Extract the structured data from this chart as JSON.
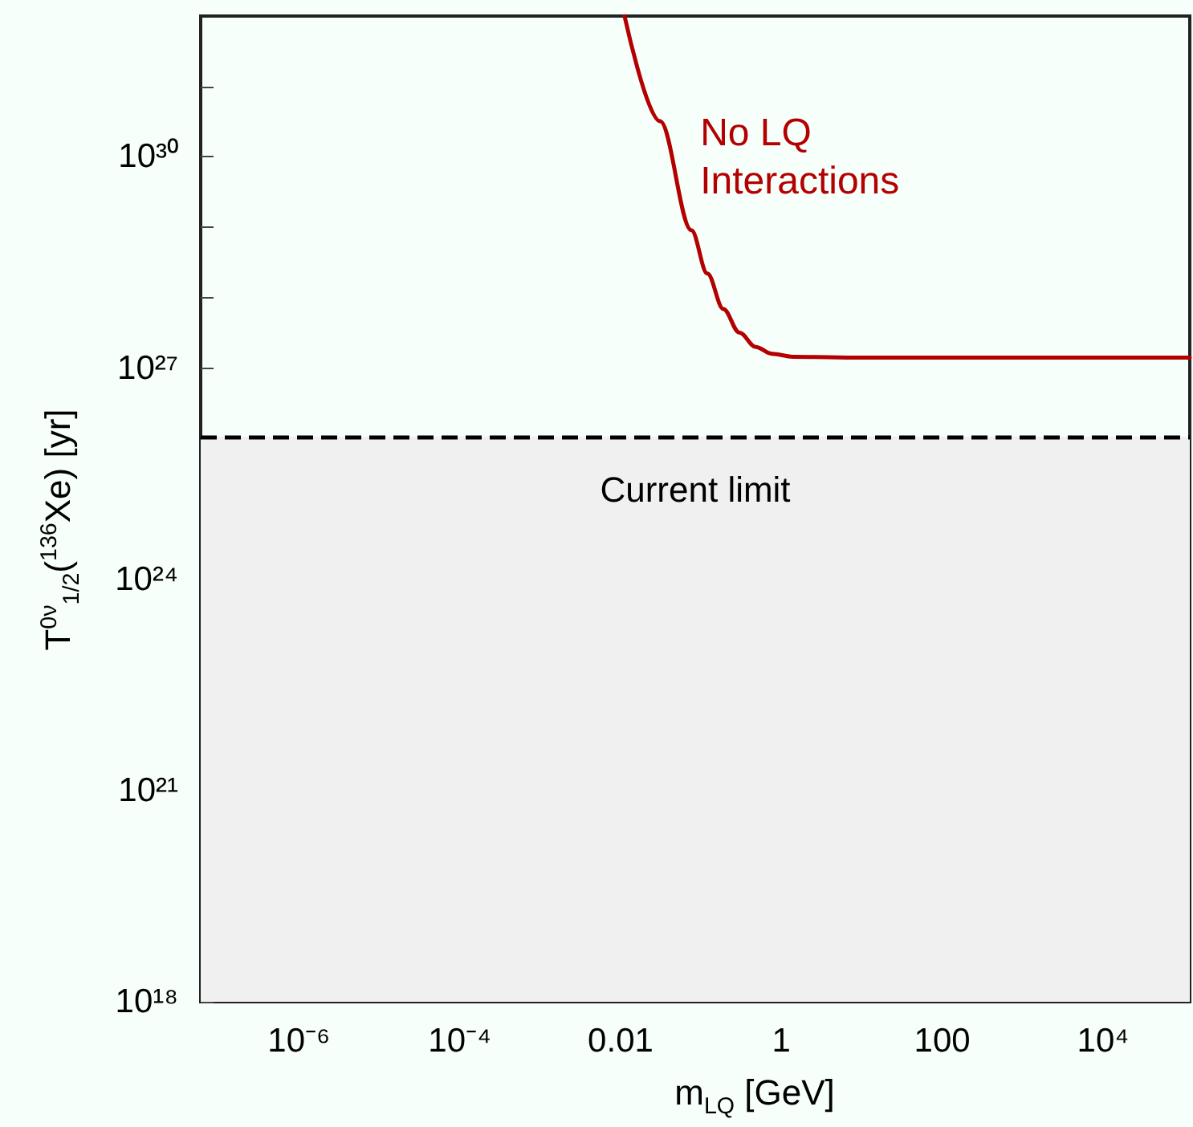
{
  "chart_data": {
    "type": "line",
    "xlabel": "m$_{LQ}$ [GeV]",
    "ylabel": "T$^{0ν}$$_{1/2}$($^{136}$Xe) [yr]",
    "log": "xy",
    "grid": false,
    "legend": false,
    "marker": "none",
    "line_style": "solid",
    "series": [
      {
        "name": "No LQ Interactions",
        "color": "#b30000",
        "x": [
          0.0112,
          0.031,
          0.076,
          0.12,
          0.19,
          0.3,
          0.48,
          0.76,
          1.38,
          10,
          120000
        ],
        "values": [
          1e+32,
          3.2e+30,
          9.1e+28,
          2.2e+28,
          6.9e+27,
          3.2e+27,
          2e+27,
          1.6e+27,
          1.45e+27,
          1.41e+27,
          1.41e+27
        ]
      }
    ],
    "xlim": [
      6e-08,
      120000
    ],
    "xticks": [
      {
        "value": 1e-06,
        "label": "10⁻⁶"
      },
      {
        "value": 1e-05,
        "label": null
      },
      {
        "value": 0.0001,
        "label": "10⁻⁴"
      },
      {
        "value": 0.001,
        "label": null
      },
      {
        "value": 0.01,
        "label": "0.01"
      },
      {
        "value": 0.1,
        "label": null
      },
      1,
      {
        "value": 10,
        "label": null
      },
      100,
      {
        "value": 1000,
        "label": null
      },
      {
        "value": 10000,
        "label": "10⁴"
      },
      {
        "value": 100000,
        "label": null
      }
    ],
    "ylim": [
      1e+18,
      1e+32
    ],
    "yticks": [
      {
        "value": 1e+18,
        "label": "10¹⁸"
      },
      {
        "value": 1e+19,
        "label": null
      },
      {
        "value": 1e+20,
        "label": null
      },
      {
        "value": 1e+21,
        "label": "10²¹"
      },
      {
        "value": 1e+22,
        "label": null
      },
      {
        "value": 1e+23,
        "label": null
      },
      {
        "value": 1e+24,
        "label": "10²⁴"
      },
      {
        "value": 1e+25,
        "label": null
      },
      {
        "value": 1e+26,
        "label": null
      },
      {
        "value": 1e+27,
        "label": "10²⁷"
      },
      {
        "value": 1e+28,
        "label": null
      },
      {
        "value": 1e+29,
        "label": null
      },
      {
        "value": 1e+30,
        "label": "10³⁰"
      },
      {
        "value": 1e+31,
        "label": null
      }
    ],
    "ref_lines": [
      {
        "axis": "y",
        "value": 1.07e+26,
        "color": "#000000",
        "line_style": "dashed"
      }
    ],
    "bands": [
      {
        "axis": "y",
        "from": 1e+18,
        "to": 1.07e+26,
        "label": "Current limit",
        "color": "#f0f0f0"
      }
    ]
  }
}
